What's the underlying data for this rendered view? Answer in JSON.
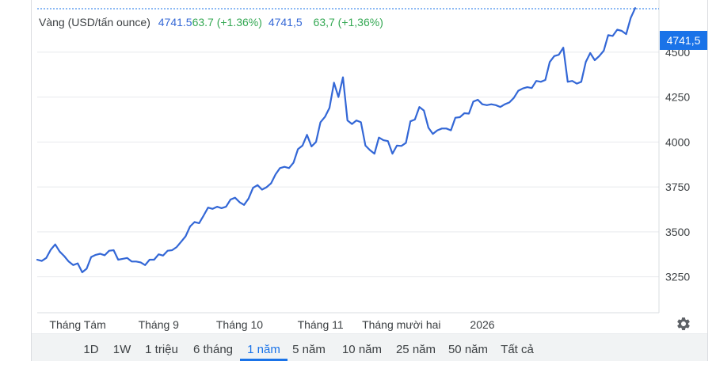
{
  "header": {
    "title": "Vàng (USD/tấn ounce)",
    "price_raw": "4741.5",
    "change_raw": "63.7 (+1.36%)",
    "price": "4741,5",
    "change": "63,7 (+1,36%)"
  },
  "price_tag": "4741,5",
  "colors": {
    "line": "#3367d6",
    "accent": "#1a73e8",
    "positive": "#34a853",
    "grid": "#e8eaed"
  },
  "ranges": [
    "1D",
    "1W",
    "1 triệu",
    "6 tháng",
    "1 năm",
    "5 năm",
    "10 năm",
    "25 năm",
    "50 năm",
    "Tất cả"
  ],
  "active_range": "1 năm",
  "settings_icon": "gear-icon",
  "chart_data": {
    "type": "line",
    "title": "Vàng (USD/tấn ounce)",
    "y_ticks": [
      "3250",
      "3500",
      "3750",
      "4000",
      "4250",
      "4500"
    ],
    "ylim": [
      3050,
      4790
    ],
    "grid": true,
    "x_tick_labels": [
      "Tháng Tám",
      "Tháng 9",
      "Tháng 10",
      "Tháng 11",
      "Tháng mười hai",
      "2026"
    ],
    "x_tick_index": [
      9,
      27,
      45,
      63,
      81,
      99
    ],
    "last_value": 4741.5,
    "series": [
      {
        "values": [
          3345,
          3338,
          3355,
          3400,
          3430,
          3390,
          3365,
          3335,
          3315,
          3325,
          3275,
          3295,
          3360,
          3372,
          3378,
          3370,
          3395,
          3398,
          3345,
          3350,
          3355,
          3335,
          3335,
          3330,
          3315,
          3345,
          3345,
          3375,
          3368,
          3395,
          3398,
          3415,
          3445,
          3475,
          3530,
          3555,
          3548,
          3590,
          3635,
          3628,
          3640,
          3632,
          3640,
          3680,
          3690,
          3665,
          3650,
          3685,
          3745,
          3760,
          3735,
          3748,
          3770,
          3820,
          3855,
          3862,
          3855,
          3885,
          3960,
          3980,
          4040,
          3975,
          4000,
          4110,
          4140,
          4190,
          4330,
          4250,
          4360,
          4120,
          4100,
          4120,
          4110,
          3980,
          3955,
          3935,
          4025,
          4010,
          4005,
          3935,
          3980,
          3978,
          3995,
          4115,
          4125,
          4195,
          4175,
          4080,
          4045,
          4065,
          4075,
          4075,
          4065,
          4135,
          4138,
          4160,
          4158,
          4225,
          4235,
          4210,
          4205,
          4210,
          4205,
          4195,
          4210,
          4220,
          4245,
          4285,
          4298,
          4305,
          4300,
          4340,
          4335,
          4345,
          4445,
          4478,
          4485,
          4525,
          4335,
          4340,
          4325,
          4335,
          4445,
          4495,
          4455,
          4478,
          4508,
          4595,
          4590,
          4625,
          4618,
          4600,
          4690,
          4745
        ]
      }
    ]
  }
}
